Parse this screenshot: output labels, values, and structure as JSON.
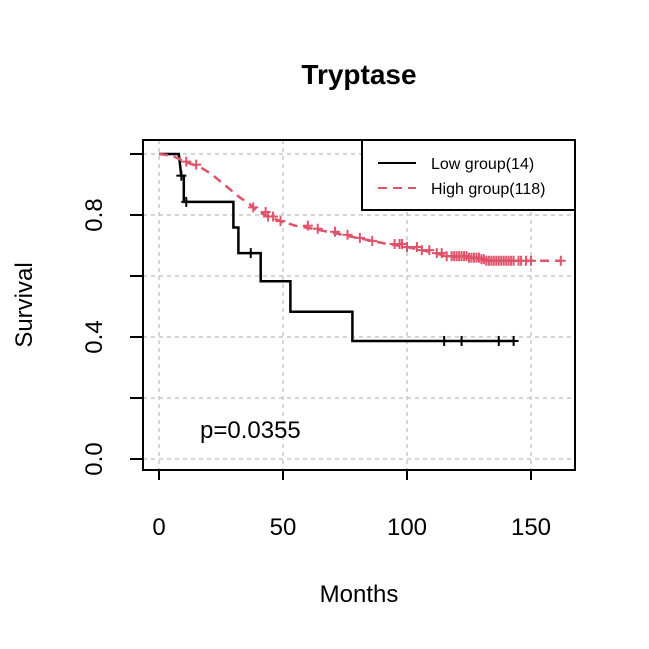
{
  "chart_data": {
    "type": "line",
    "title": "Tryptase",
    "xlabel": "Months",
    "ylabel": "Survival",
    "xlim": [
      0,
      165
    ],
    "ylim": [
      0,
      1
    ],
    "x_ticks": [
      0,
      50,
      100,
      150
    ],
    "y_ticks": [
      0.0,
      0.2,
      0.4,
      0.6,
      0.8,
      1.0
    ],
    "y_tick_labels": [
      "0.0",
      "",
      "0.4",
      "",
      "0.8",
      ""
    ],
    "grid": true,
    "legend_position": "top-right",
    "annotation": "p=0.0355",
    "series": [
      {
        "name": "Low group(14)",
        "color": "#000000",
        "line_style": "solid",
        "steps": [
          [
            0,
            1.0
          ],
          [
            8,
            1.0
          ],
          [
            9,
            0.929
          ],
          [
            10,
            0.929
          ],
          [
            10,
            0.843
          ],
          [
            30,
            0.843
          ],
          [
            30,
            0.759
          ],
          [
            32,
            0.759
          ],
          [
            32,
            0.675
          ],
          [
            41,
            0.675
          ],
          [
            41,
            0.583
          ],
          [
            53,
            0.583
          ],
          [
            53,
            0.483
          ],
          [
            78,
            0.483
          ],
          [
            78,
            0.387
          ],
          [
            143,
            0.387
          ]
        ],
        "censor_times": [
          9,
          11,
          37,
          115,
          122,
          137,
          143
        ]
      },
      {
        "name": "High group(118)",
        "color": "#DF536B",
        "line_style": "dashed",
        "steps": [
          [
            0,
            1.0
          ],
          [
            5,
            0.995
          ],
          [
            8,
            0.985
          ],
          [
            10,
            0.975
          ],
          [
            14,
            0.965
          ],
          [
            17,
            0.955
          ],
          [
            21,
            0.935
          ],
          [
            24,
            0.915
          ],
          [
            27,
            0.895
          ],
          [
            30,
            0.875
          ],
          [
            33,
            0.855
          ],
          [
            36,
            0.84
          ],
          [
            38,
            0.825
          ],
          [
            40,
            0.81
          ],
          [
            44,
            0.795
          ],
          [
            49,
            0.78
          ],
          [
            55,
            0.765
          ],
          [
            62,
            0.755
          ],
          [
            68,
            0.745
          ],
          [
            74,
            0.735
          ],
          [
            80,
            0.725
          ],
          [
            86,
            0.715
          ],
          [
            92,
            0.705
          ],
          [
            100,
            0.695
          ],
          [
            106,
            0.685
          ],
          [
            111,
            0.675
          ],
          [
            116,
            0.665
          ],
          [
            125,
            0.66
          ],
          [
            130,
            0.655
          ],
          [
            132,
            0.65
          ],
          [
            162,
            0.65
          ]
        ],
        "censor_times": [
          11,
          15,
          38,
          43,
          44,
          46,
          49,
          60,
          64,
          71,
          76,
          81,
          86,
          95,
          97,
          98,
          100,
          104,
          106,
          109,
          112,
          114,
          116,
          118,
          119,
          120,
          121,
          122,
          123,
          124,
          125,
          126,
          127,
          128,
          129,
          130,
          131,
          132,
          133,
          134,
          135,
          136,
          137,
          138,
          139,
          140,
          141,
          142,
          143,
          145,
          146,
          148,
          150,
          162
        ]
      }
    ]
  }
}
